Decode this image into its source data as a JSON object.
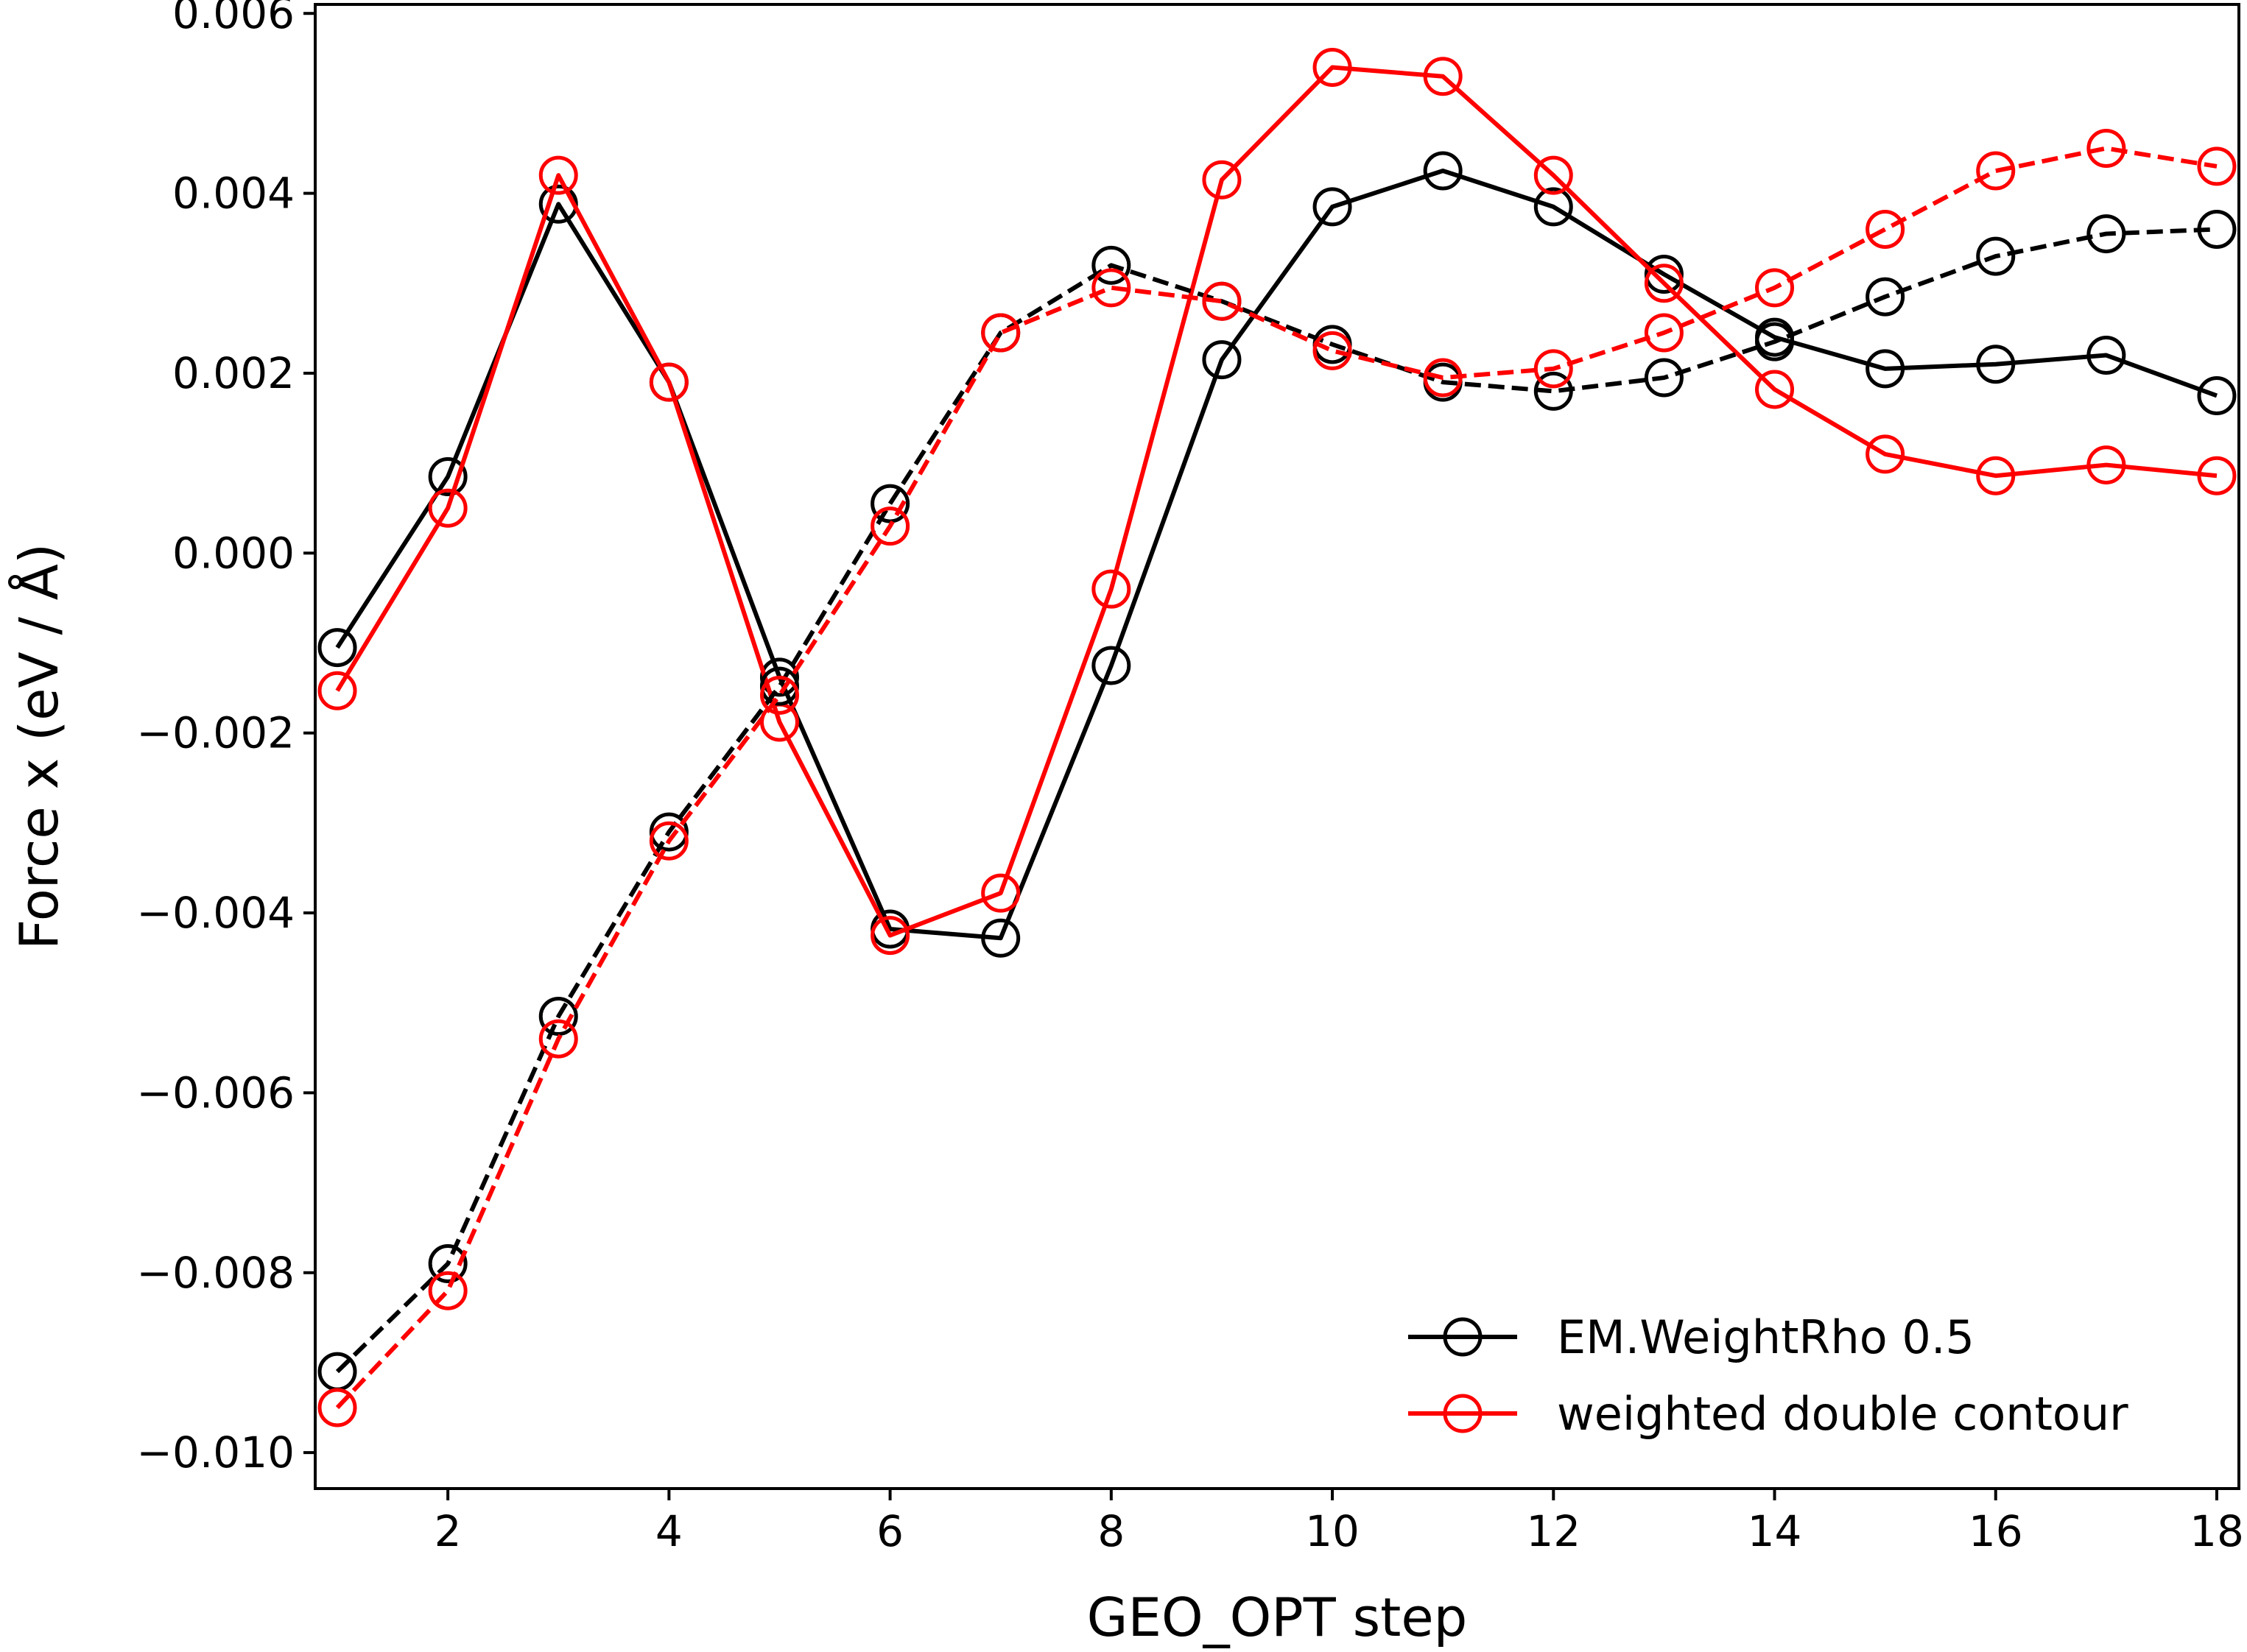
{
  "chart_data": {
    "type": "line",
    "title": "",
    "xlabel": "GEO_OPT step",
    "ylabel": "Force x (eV / Å)",
    "xlim": [
      0.8,
      18.2
    ],
    "ylim": [
      -0.0104,
      0.0061
    ],
    "xticks": [
      2,
      4,
      6,
      8,
      10,
      12,
      14,
      16,
      18
    ],
    "xtick_labels": [
      "2",
      "4",
      "6",
      "8",
      "10",
      "12",
      "14",
      "16",
      "18"
    ],
    "yticks": [
      -0.01,
      -0.008,
      -0.006,
      -0.004,
      -0.002,
      0.0,
      0.002,
      0.004,
      0.006
    ],
    "ytick_labels": [
      "−0.010",
      "−0.008",
      "−0.006",
      "−0.004",
      "−0.002",
      "0.000",
      "0.002",
      "0.004",
      "0.006"
    ],
    "grid": false,
    "legend_position": "lower-right",
    "legend": [
      {
        "label": "EM.WeightRho 0.5",
        "color": "#000000"
      },
      {
        "label": "weighted double contour",
        "color": "#ff0000"
      }
    ],
    "series": [
      {
        "color": "#000000",
        "line_style": "solid",
        "marker": "open-circle",
        "x": [
          1,
          2,
          3,
          4,
          5,
          6,
          7,
          8,
          9,
          10,
          11,
          12,
          13,
          14,
          15,
          16,
          17,
          18
        ],
        "y": [
          -0.00105,
          0.00085,
          0.00388,
          0.0019,
          -0.00138,
          -0.00418,
          -0.00428,
          -0.00125,
          0.00215,
          0.00385,
          0.00425,
          0.00385,
          0.0031,
          0.0024,
          0.00205,
          0.0021,
          0.0022,
          0.00175
        ]
      },
      {
        "color": "#ff0000",
        "line_style": "solid",
        "marker": "open-circle",
        "x": [
          1,
          2,
          3,
          4,
          5,
          6,
          7,
          8,
          9,
          10,
          11,
          12,
          13,
          14,
          15,
          16,
          17,
          18
        ],
        "y": [
          -0.00153,
          0.0005,
          0.0042,
          0.0019,
          -0.00188,
          -0.00425,
          -0.00378,
          -0.0004,
          0.00415,
          0.0054,
          0.0053,
          0.0042,
          0.003,
          0.00182,
          0.0011,
          0.00086,
          0.00098,
          0.00086
        ]
      },
      {
        "color": "#000000",
        "line_style": "dashed",
        "marker": "open-circle",
        "x": [
          1,
          2,
          3,
          4,
          5,
          6,
          7,
          8,
          9,
          10,
          11,
          12,
          13,
          14,
          15,
          16,
          17,
          18
        ],
        "y": [
          -0.0091,
          -0.0079,
          -0.00515,
          -0.0031,
          -0.00148,
          0.00055,
          0.00245,
          0.0032,
          0.0028,
          0.00232,
          0.0019,
          0.0018,
          0.00195,
          0.00235,
          0.00285,
          0.0033,
          0.00355,
          0.0036
        ]
      },
      {
        "color": "#ff0000",
        "line_style": "dashed",
        "marker": "open-circle",
        "x": [
          1,
          2,
          3,
          4,
          5,
          6,
          7,
          8,
          9,
          10,
          11,
          12,
          13,
          14,
          15,
          16,
          17,
          18
        ],
        "y": [
          -0.0095,
          -0.0082,
          -0.0054,
          -0.0032,
          -0.00158,
          0.0003,
          0.00245,
          0.00295,
          0.0028,
          0.00225,
          0.00195,
          0.00205,
          0.00245,
          0.00295,
          0.0036,
          0.00425,
          0.0045,
          0.0043
        ]
      }
    ]
  }
}
